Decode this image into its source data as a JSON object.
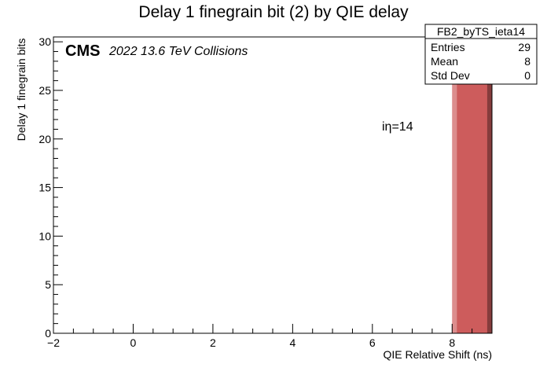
{
  "chart_data": {
    "type": "bar",
    "title": "Delay 1 finegrain bit (2) by QIE delay",
    "xlabel": "QIE Relative Shift (ns)",
    "ylabel": "Delay 1 finegrain bits",
    "xlim": [
      -2,
      9
    ],
    "ylim": [
      0,
      30.5
    ],
    "x_ticks": [
      -2,
      0,
      2,
      4,
      6,
      8
    ],
    "y_ticks": [
      0,
      5,
      10,
      15,
      20,
      25,
      30
    ],
    "bins": [
      {
        "x_low": 8,
        "x_high": 9,
        "value": 29
      }
    ],
    "bar_color": "#cd5c5c",
    "annotation": "iη=14",
    "cms_label": "CMS",
    "cms_sublabel": "2022 13.6 TeV Collisions",
    "stats_box": {
      "name": "FB2_byTS_ieta14",
      "rows": [
        {
          "label": "Entries",
          "value": "29"
        },
        {
          "label": "Mean",
          "value": "8"
        },
        {
          "label": "Std Dev",
          "value": "0"
        }
      ]
    }
  }
}
